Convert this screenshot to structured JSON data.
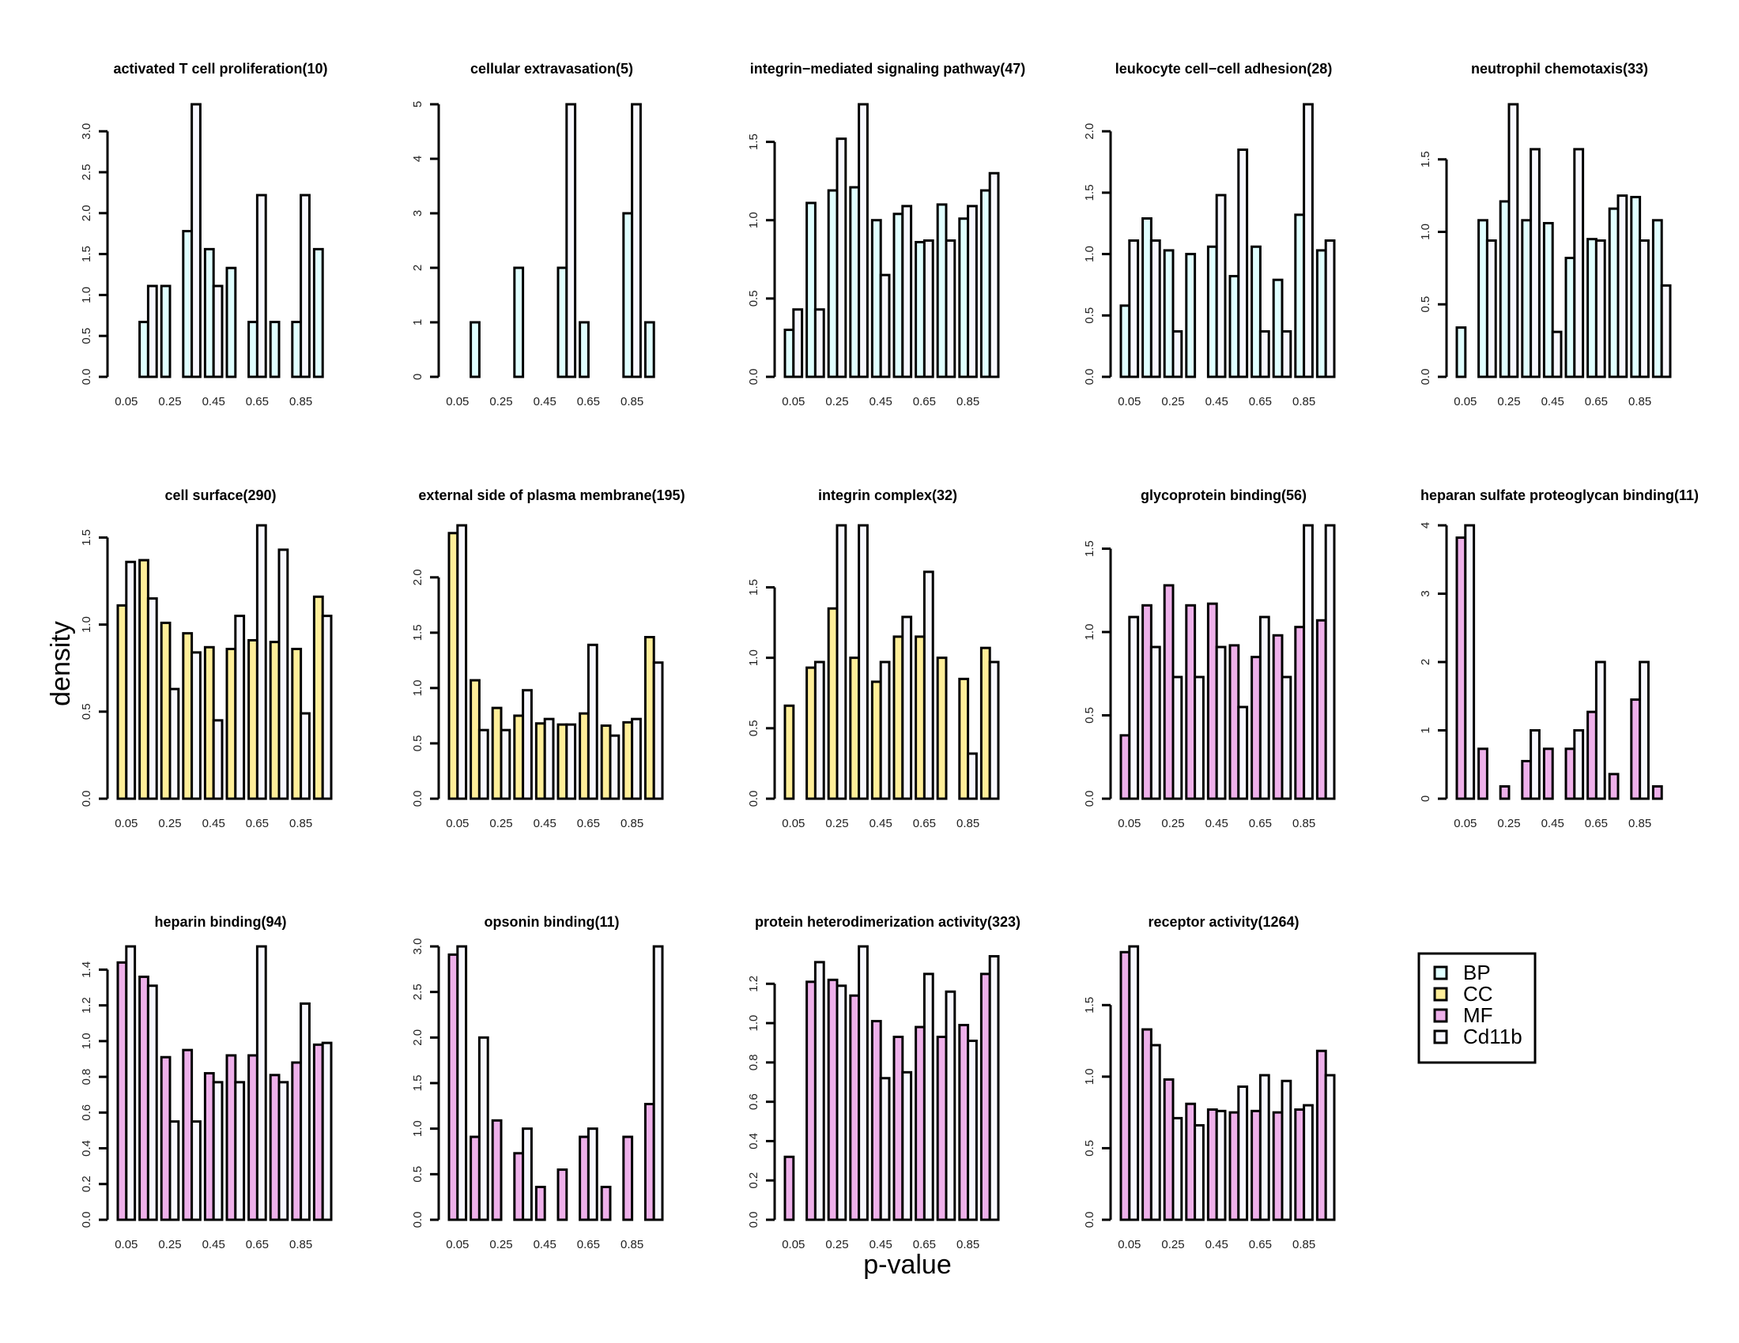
{
  "chart_data": {
    "type": "bar",
    "subtype": "grouped-histogram-grid",
    "xlabel": "p-value",
    "ylabel": "density",
    "x_tick_labels": [
      "0.05",
      "0.25",
      "0.45",
      "0.65",
      "0.85"
    ],
    "bin_centers": [
      0.05,
      0.15,
      0.25,
      0.35,
      0.45,
      0.55,
      0.65,
      0.75,
      0.85,
      0.95
    ],
    "xlim": [
      0,
      1
    ],
    "grid": false,
    "legend": {
      "placement": "bottom-right",
      "entries": [
        {
          "label": "BP",
          "color": "#E0FFFF"
        },
        {
          "label": "CC",
          "color": "#FFEE99"
        },
        {
          "label": "MF",
          "color": "#EEB0EA"
        },
        {
          "label": "Cd11b",
          "color": "#F8F8FF"
        }
      ]
    },
    "panels": [
      {
        "title": "activated T cell proliferation(10)",
        "category": "BP",
        "ylim": [
          0,
          3.33
        ],
        "yticks": [
          "0.0",
          "0.5",
          "1.0",
          "1.5",
          "2.0",
          "2.5",
          "3.0"
        ],
        "ytick_values": [
          0,
          0.5,
          1,
          1.5,
          2,
          2.5,
          3
        ],
        "series": [
          {
            "name": "BP",
            "values": [
              0,
              0.67,
              1.11,
              1.78,
              1.56,
              1.33,
              0.67,
              0.67,
              0.67,
              1.56
            ]
          },
          {
            "name": "Cd11b",
            "values": [
              0,
              1.11,
              0,
              3.33,
              1.11,
              0,
              2.22,
              0,
              2.22,
              0
            ]
          }
        ]
      },
      {
        "title": "cellular extravasation(5)",
        "category": "BP",
        "ylim": [
          0,
          5
        ],
        "yticks": [
          "0",
          "1",
          "2",
          "3",
          "4",
          "5"
        ],
        "ytick_values": [
          0,
          1,
          2,
          3,
          4,
          5
        ],
        "series": [
          {
            "name": "BP",
            "values": [
              0,
              1,
              0,
              2,
              0,
              2,
              1,
              0,
              3,
              1
            ]
          },
          {
            "name": "Cd11b",
            "values": [
              0,
              0,
              0,
              0,
              0,
              5,
              0,
              0,
              5,
              0
            ]
          }
        ]
      },
      {
        "title": "integrin−mediated signaling pathway(47)",
        "category": "BP",
        "ylim": [
          0,
          1.74
        ],
        "yticks": [
          "0.0",
          "0.5",
          "1.0",
          "1.5"
        ],
        "ytick_values": [
          0,
          0.5,
          1,
          1.5
        ],
        "series": [
          {
            "name": "BP",
            "values": [
              0.3,
              1.11,
              1.19,
              1.21,
              1.0,
              1.04,
              0.86,
              1.1,
              1.01,
              1.19
            ]
          },
          {
            "name": "Cd11b",
            "values": [
              0.43,
              0.43,
              1.52,
              1.74,
              0.65,
              1.09,
              0.87,
              0.87,
              1.09,
              1.3
            ]
          }
        ]
      },
      {
        "title": "leukocyte cell−cell adhesion(28)",
        "category": "BP",
        "ylim": [
          0,
          2.22
        ],
        "yticks": [
          "0.0",
          "0.5",
          "1.0",
          "1.5",
          "2.0"
        ],
        "ytick_values": [
          0,
          0.5,
          1,
          1.5,
          2
        ],
        "series": [
          {
            "name": "BP",
            "values": [
              0.58,
              1.29,
              1.03,
              1.0,
              1.06,
              0.82,
              1.06,
              0.79,
              1.32,
              1.03
            ]
          },
          {
            "name": "Cd11b",
            "values": [
              1.11,
              1.11,
              0.37,
              0,
              1.48,
              1.85,
              0.37,
              0.37,
              2.22,
              1.11
            ]
          }
        ]
      },
      {
        "title": "neutrophil chemotaxis(33)",
        "category": "BP",
        "ylim": [
          0,
          1.88
        ],
        "yticks": [
          "0.0",
          "0.5",
          "1.0",
          "1.5"
        ],
        "ytick_values": [
          0,
          0.5,
          1,
          1.5
        ],
        "series": [
          {
            "name": "BP",
            "values": [
              0.34,
              1.08,
              1.21,
              1.08,
              1.06,
              0.82,
              0.95,
              1.16,
              1.24,
              1.08
            ]
          },
          {
            "name": "Cd11b",
            "values": [
              0,
              0.94,
              1.88,
              1.57,
              0.31,
              1.57,
              0.94,
              1.25,
              0.94,
              0.63
            ]
          }
        ]
      },
      {
        "title": "cell surface(290)",
        "category": "CC",
        "ylim": [
          0,
          1.57
        ],
        "yticks": [
          "0.0",
          "0.5",
          "1.0",
          "1.5"
        ],
        "ytick_values": [
          0,
          0.5,
          1,
          1.5
        ],
        "series": [
          {
            "name": "CC",
            "values": [
              1.11,
              1.37,
              1.01,
              0.95,
              0.87,
              0.86,
              0.91,
              0.9,
              0.86,
              1.16
            ]
          },
          {
            "name": "Cd11b",
            "values": [
              1.36,
              1.15,
              0.63,
              0.84,
              0.45,
              1.05,
              1.57,
              1.43,
              0.49,
              1.05
            ]
          }
        ]
      },
      {
        "title": "external side of plasma membrane(195)",
        "category": "CC",
        "ylim": [
          0,
          2.47
        ],
        "yticks": [
          "0.0",
          "0.5",
          "1.0",
          "1.5",
          "2.0"
        ],
        "ytick_values": [
          0,
          0.5,
          1,
          1.5,
          2
        ],
        "series": [
          {
            "name": "CC",
            "values": [
              2.4,
              1.07,
              0.82,
              0.75,
              0.68,
              0.67,
              0.77,
              0.66,
              0.69,
              1.46
            ]
          },
          {
            "name": "Cd11b",
            "values": [
              2.47,
              0.62,
              0.62,
              0.98,
              0.72,
              0.67,
              1.39,
              0.57,
              0.72,
              1.23
            ]
          }
        ]
      },
      {
        "title": "integrin complex(32)",
        "category": "CC",
        "ylim": [
          0,
          1.94
        ],
        "yticks": [
          "0.0",
          "0.5",
          "1.0",
          "1.5"
        ],
        "ytick_values": [
          0,
          0.5,
          1,
          1.5
        ],
        "series": [
          {
            "name": "CC",
            "values": [
              0.66,
              0.93,
              1.35,
              1.0,
              0.83,
              1.15,
              1.15,
              1.0,
              0.85,
              1.07
            ]
          },
          {
            "name": "Cd11b",
            "values": [
              0,
              0.97,
              1.94,
              1.94,
              0.97,
              1.29,
              1.61,
              0,
              0.32,
              0.97
            ]
          }
        ]
      },
      {
        "title": "glycoprotein binding(56)",
        "category": "MF",
        "ylim": [
          0,
          1.64
        ],
        "yticks": [
          "0.0",
          "0.5",
          "1.0",
          "1.5"
        ],
        "ytick_values": [
          0,
          0.5,
          1,
          1.5
        ],
        "series": [
          {
            "name": "MF",
            "values": [
              0.38,
              1.16,
              1.28,
              1.16,
              1.17,
              0.92,
              0.85,
              0.98,
              1.03,
              1.07
            ]
          },
          {
            "name": "Cd11b",
            "values": [
              1.09,
              0.91,
              0.73,
              0.73,
              0.91,
              0.55,
              1.09,
              0.73,
              1.64,
              1.64
            ]
          }
        ]
      },
      {
        "title": "heparan sulfate proteoglycan binding(11)",
        "category": "MF",
        "ylim": [
          0,
          4
        ],
        "yticks": [
          "0",
          "1",
          "2",
          "3",
          "4"
        ],
        "ytick_values": [
          0,
          1,
          2,
          3,
          4
        ],
        "series": [
          {
            "name": "MF",
            "values": [
              3.82,
              0.73,
              0.18,
              0.55,
              0.73,
              0.73,
              1.27,
              0.36,
              1.45,
              0.18
            ]
          },
          {
            "name": "Cd11b",
            "values": [
              4,
              0,
              0,
              1,
              0,
              1,
              2,
              0,
              2,
              0
            ]
          }
        ]
      },
      {
        "title": "heparin binding(94)",
        "category": "MF",
        "ylim": [
          0,
          1.53
        ],
        "yticks": [
          "0.0",
          "0.2",
          "0.4",
          "0.6",
          "0.8",
          "1.0",
          "1.2",
          "1.4"
        ],
        "ytick_values": [
          0,
          0.2,
          0.4,
          0.6,
          0.8,
          1,
          1.2,
          1.4
        ],
        "series": [
          {
            "name": "MF",
            "values": [
              1.44,
              1.36,
              0.91,
              0.95,
              0.82,
              0.92,
              0.92,
              0.81,
              0.88,
              0.98
            ]
          },
          {
            "name": "Cd11b",
            "values": [
              1.53,
              1.31,
              0.55,
              0.55,
              0.77,
              0.77,
              1.53,
              0.77,
              1.21,
              0.99
            ]
          }
        ]
      },
      {
        "title": "opsonin binding(11)",
        "category": "MF",
        "ylim": [
          0,
          3
        ],
        "yticks": [
          "0.0",
          "0.5",
          "1.0",
          "1.5",
          "2.0",
          "2.5",
          "3.0"
        ],
        "ytick_values": [
          0,
          0.5,
          1,
          1.5,
          2,
          2.5,
          3
        ],
        "series": [
          {
            "name": "MF",
            "values": [
              2.91,
              0.91,
              1.09,
              0.73,
              0.36,
              0.55,
              0.91,
              0.36,
              0.91,
              1.27
            ]
          },
          {
            "name": "Cd11b",
            "values": [
              3,
              2,
              0,
              1,
              0,
              0,
              1,
              0,
              0,
              3
            ]
          }
        ]
      },
      {
        "title": "protein heterodimerization activity(323)",
        "category": "MF",
        "ylim": [
          0,
          1.39
        ],
        "yticks": [
          "0.0",
          "0.2",
          "0.4",
          "0.6",
          "0.8",
          "1.0",
          "1.2"
        ],
        "ytick_values": [
          0,
          0.2,
          0.4,
          0.6,
          0.8,
          1,
          1.2
        ],
        "series": [
          {
            "name": "MF",
            "values": [
              0.32,
              1.21,
              1.22,
              1.14,
              1.01,
              0.93,
              0.98,
              0.93,
              0.99,
              1.25
            ]
          },
          {
            "name": "Cd11b",
            "values": [
              0,
              1.31,
              1.19,
              1.39,
              0.72,
              0.75,
              1.25,
              1.16,
              0.91,
              1.34
            ]
          }
        ]
      },
      {
        "title": "receptor activity(1264)",
        "category": "MF",
        "ylim": [
          0,
          1.91
        ],
        "yticks": [
          "0.0",
          "0.5",
          "1.0",
          "1.5"
        ],
        "ytick_values": [
          0,
          0.5,
          1,
          1.5
        ],
        "series": [
          {
            "name": "MF",
            "values": [
              1.87,
              1.33,
              0.98,
              0.81,
              0.77,
              0.75,
              0.76,
              0.75,
              0.77,
              1.18
            ]
          },
          {
            "name": "Cd11b",
            "values": [
              1.91,
              1.22,
              0.71,
              0.66,
              0.76,
              0.93,
              1.01,
              0.97,
              0.8,
              1.01
            ]
          }
        ]
      }
    ]
  }
}
